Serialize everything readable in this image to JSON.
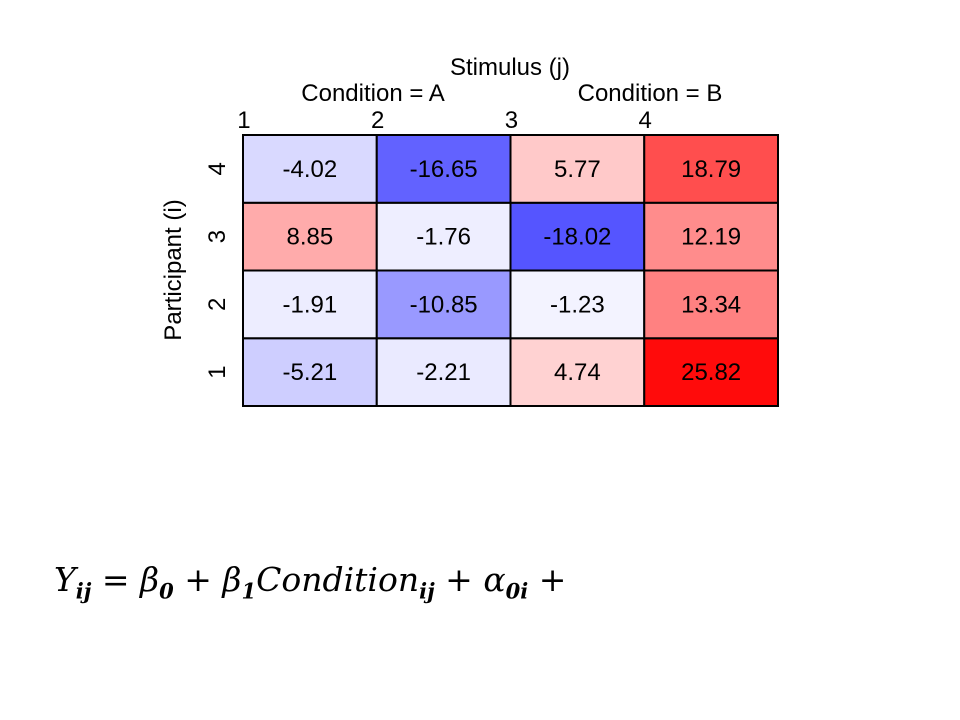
{
  "chart_data": {
    "type": "heatmap",
    "title": "Stimulus (j)",
    "ylabel": "Participant (i)",
    "column_groups": [
      {
        "label": "Condition = A",
        "columns": [
          "1",
          "2"
        ]
      },
      {
        "label": "Condition = B",
        "columns": [
          "3",
          "4"
        ]
      }
    ],
    "x_categories": [
      "1",
      "2",
      "3",
      "4"
    ],
    "y_categories": [
      "1",
      "2",
      "3",
      "4"
    ],
    "values": [
      [
        -5.21,
        -2.21,
        4.74,
        25.82
      ],
      [
        -1.91,
        -10.85,
        -1.23,
        13.34
      ],
      [
        8.85,
        -1.76,
        -18.02,
        12.19
      ],
      [
        -4.02,
        -16.65,
        5.77,
        18.79
      ]
    ],
    "value_labels": [
      [
        "-5.21",
        "-2.21",
        "4.74",
        "25.82"
      ],
      [
        "-1.91",
        "-10.85",
        "-1.23",
        "13.34"
      ],
      [
        "8.85",
        "-1.76",
        "-18.02",
        "12.19"
      ],
      [
        "-4.02",
        "-16.65",
        "5.77",
        "18.79"
      ]
    ],
    "color_scale": {
      "negative": "#0000ff",
      "zero": "#ffffff",
      "positive": "#ff0000",
      "max_abs": 27
    },
    "border_color": "#000000"
  },
  "equation": {
    "Y": "Y",
    "Y_sub": "ij",
    "eq": "=",
    "b0": "β",
    "b0_sub": "0",
    "plus1": "+",
    "b1": "β",
    "b1_sub": "1",
    "cond": "Condition",
    "cond_sub": "ij",
    "plus2": "+",
    "a0": "α",
    "a0_sub": "0i",
    "plus3": "+"
  }
}
